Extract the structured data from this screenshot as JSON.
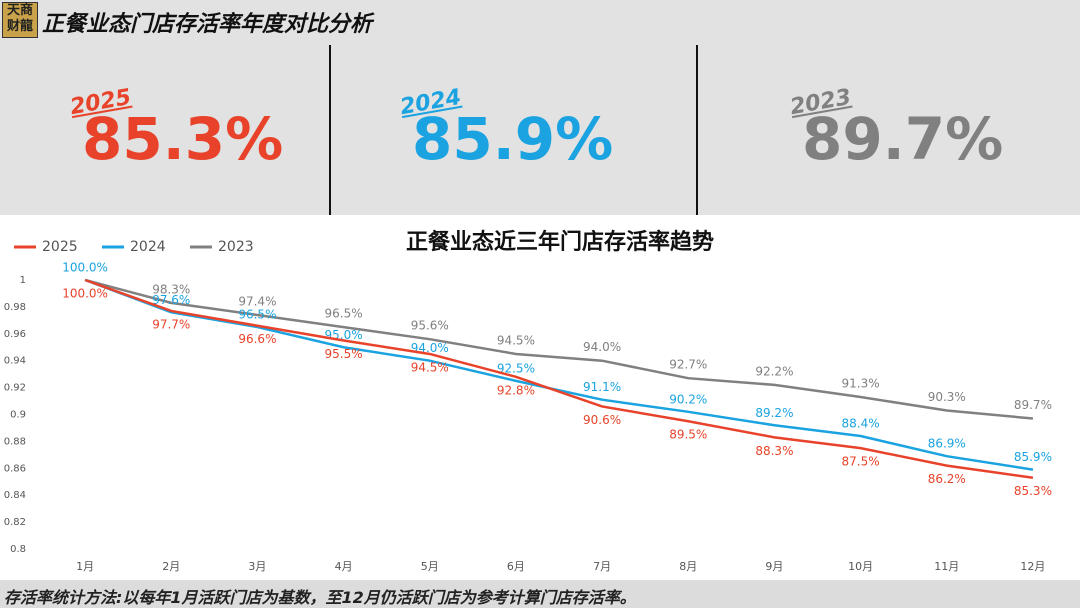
{
  "header": {
    "logo": [
      "天商",
      "财龍"
    ],
    "title": "正餐业态门店存活率年度对比分析"
  },
  "kpis": [
    {
      "year": "2025",
      "value": "85.3%",
      "color": "#e8432a"
    },
    {
      "year": "2024",
      "value": "85.9%",
      "color": "#1aa3e0"
    },
    {
      "year": "2023",
      "value": "89.7%",
      "color": "#808080"
    }
  ],
  "chart_data": {
    "type": "line",
    "title": "正餐业态近三年门店存活率趋势",
    "categories": [
      "1月",
      "2月",
      "3月",
      "4月",
      "5月",
      "6月",
      "7月",
      "8月",
      "9月",
      "10月",
      "11月",
      "12月"
    ],
    "ylim": [
      0.8,
      1
    ],
    "yticks": [
      0.8,
      0.82,
      0.84,
      0.86,
      0.88,
      0.9,
      0.92,
      0.94,
      0.96,
      0.98,
      1
    ],
    "series": [
      {
        "name": "2025",
        "color": "#e8432a",
        "values": [
          1.0,
          0.977,
          0.966,
          0.955,
          0.945,
          0.928,
          0.906,
          0.895,
          0.883,
          0.875,
          0.862,
          0.853
        ],
        "value_labels": [
          "100.0%",
          "97.7%",
          "96.6%",
          "95.5%",
          "94.5%",
          "92.8%",
          "90.6%",
          "89.5%",
          "88.3%",
          "87.5%",
          "86.2%",
          "85.3%"
        ]
      },
      {
        "name": "2024",
        "color": "#1aa3e0",
        "values": [
          1.0,
          0.976,
          0.965,
          0.95,
          0.94,
          0.925,
          0.911,
          0.902,
          0.892,
          0.884,
          0.869,
          0.859
        ],
        "value_labels": [
          "100.0%",
          "97.6%",
          "96.5%",
          "95.0%",
          "94.0%",
          "92.5%",
          "91.1%",
          "90.2%",
          "89.2%",
          "88.4%",
          "86.9%",
          "85.9%"
        ]
      },
      {
        "name": "2023",
        "color": "#808080",
        "values": [
          1.0,
          0.983,
          0.974,
          0.965,
          0.956,
          0.945,
          0.94,
          0.927,
          0.922,
          0.913,
          0.903,
          0.897
        ],
        "value_labels": [
          null,
          "98.3%",
          "97.4%",
          "96.5%",
          "95.6%",
          "94.5%",
          "94.0%",
          "92.7%",
          "92.2%",
          "91.3%",
          "90.3%",
          "89.7%"
        ]
      }
    ]
  },
  "footer": "存活率统计方法:以每年1月活跃门店为基数，至12月仍活跃门店为参考计算门店存活率。"
}
